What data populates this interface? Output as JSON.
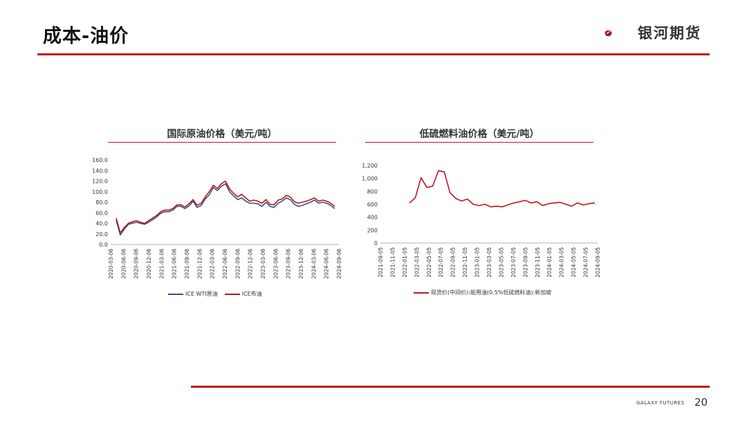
{
  "header": {
    "title": "成本-油价",
    "logo_text": "银河期货"
  },
  "footer": {
    "brand": "GALAXY FUTURES",
    "page_number": "20"
  },
  "colors": {
    "accent": "#c0141c",
    "wti": "#3a4f8a",
    "brent": "#c0141c"
  },
  "chart_data": [
    {
      "type": "line",
      "title": "国际原油价格（美元/吨）",
      "ylim": [
        0,
        160
      ],
      "yticks": [
        "160.0",
        "140.0",
        "120.0",
        "100.0",
        "80.0",
        "60.0",
        "40.0",
        "20.0",
        "0.0"
      ],
      "xticks": [
        "2020-03-06",
        "2020-06-06",
        "2020-09-06",
        "2020-12-06",
        "2021-03-06",
        "2021-06-06",
        "2021-09-06",
        "2021-12-06",
        "2022-03-06",
        "2022-06-06",
        "2022-09-06",
        "2022-12-06",
        "2023-03-06",
        "2023-06-06",
        "2023-09-06",
        "2023-12-06",
        "2024-03-06",
        "2024-06-06",
        "2024-09-06"
      ],
      "x": [
        "2020-03",
        "2020-04",
        "2020-05",
        "2020-06",
        "2020-07",
        "2020-08",
        "2020-09",
        "2020-10",
        "2020-11",
        "2020-12",
        "2021-01",
        "2021-02",
        "2021-03",
        "2021-04",
        "2021-05",
        "2021-06",
        "2021-07",
        "2021-08",
        "2021-09",
        "2021-10",
        "2021-11",
        "2021-12",
        "2022-01",
        "2022-02",
        "2022-03",
        "2022-04",
        "2022-05",
        "2022-06",
        "2022-07",
        "2022-08",
        "2022-09",
        "2022-10",
        "2022-11",
        "2022-12",
        "2023-01",
        "2023-02",
        "2023-03",
        "2023-04",
        "2023-05",
        "2023-06",
        "2023-07",
        "2023-08",
        "2023-09",
        "2023-10",
        "2023-11",
        "2023-12",
        "2024-01",
        "2024-02",
        "2024-03",
        "2024-04",
        "2024-05",
        "2024-06",
        "2024-07",
        "2024-08",
        "2024-09"
      ],
      "series": [
        {
          "name": "ICE WTI原油",
          "values": [
            46,
            18,
            29,
            38,
            40,
            42,
            40,
            38,
            42,
            47,
            52,
            59,
            62,
            62,
            65,
            72,
            72,
            68,
            73,
            82,
            70,
            74,
            86,
            94,
            108,
            102,
            110,
            115,
            100,
            92,
            85,
            88,
            82,
            78,
            78,
            77,
            72,
            80,
            72,
            70,
            78,
            82,
            88,
            85,
            76,
            72,
            74,
            77,
            80,
            84,
            78,
            80,
            78,
            74,
            68
          ]
        },
        {
          "name": "ICE布油",
          "values": [
            50,
            22,
            32,
            40,
            43,
            45,
            42,
            40,
            45,
            50,
            55,
            62,
            65,
            65,
            68,
            75,
            75,
            71,
            77,
            85,
            74,
            78,
            90,
            100,
            112,
            106,
            115,
            120,
            105,
            97,
            90,
            95,
            88,
            82,
            84,
            82,
            78,
            85,
            76,
            75,
            84,
            86,
            93,
            90,
            81,
            78,
            80,
            82,
            85,
            88,
            82,
            84,
            82,
            78,
            72
          ]
        }
      ]
    },
    {
      "type": "line",
      "title": "低硫燃料油价格（美元/吨）",
      "ylim": [
        0,
        1200
      ],
      "yticks": [
        "1,200",
        "1,000",
        "800",
        "600",
        "400",
        "200",
        "0"
      ],
      "xticks": [
        "2021-09-05",
        "2021-11-05",
        "2022-01-05",
        "2022-03-05",
        "2022-05-05",
        "2022-07-05",
        "2022-09-05",
        "2022-11-05",
        "2023-01-05",
        "2023-03-05",
        "2023-05-05",
        "2023-07-05",
        "2023-09-05",
        "2023-11-05",
        "2024-01-05",
        "2024-03-05",
        "2024-05-05",
        "2024-07-05",
        "2024-09-05"
      ],
      "x": [
        "2022-01",
        "2022-02",
        "2022-03",
        "2022-04",
        "2022-05",
        "2022-06",
        "2022-07",
        "2022-08",
        "2022-09",
        "2022-10",
        "2022-11",
        "2022-12",
        "2023-01",
        "2023-02",
        "2023-03",
        "2023-04",
        "2023-05",
        "2023-06",
        "2023-07",
        "2023-08",
        "2023-09",
        "2023-10",
        "2023-11",
        "2023-12",
        "2024-01",
        "2024-02",
        "2024-03",
        "2024-04",
        "2024-05",
        "2024-06",
        "2024-07",
        "2024-08",
        "2024-09"
      ],
      "series": [
        {
          "name": "现货价(中间价):船用油(0.5%低硫燃料油):新加坡",
          "values": [
            620,
            700,
            1010,
            860,
            880,
            1120,
            1100,
            780,
            690,
            650,
            680,
            600,
            580,
            600,
            560,
            570,
            560,
            590,
            620,
            640,
            660,
            620,
            640,
            580,
            610,
            620,
            630,
            600,
            570,
            620,
            590,
            610,
            620
          ]
        }
      ]
    }
  ]
}
